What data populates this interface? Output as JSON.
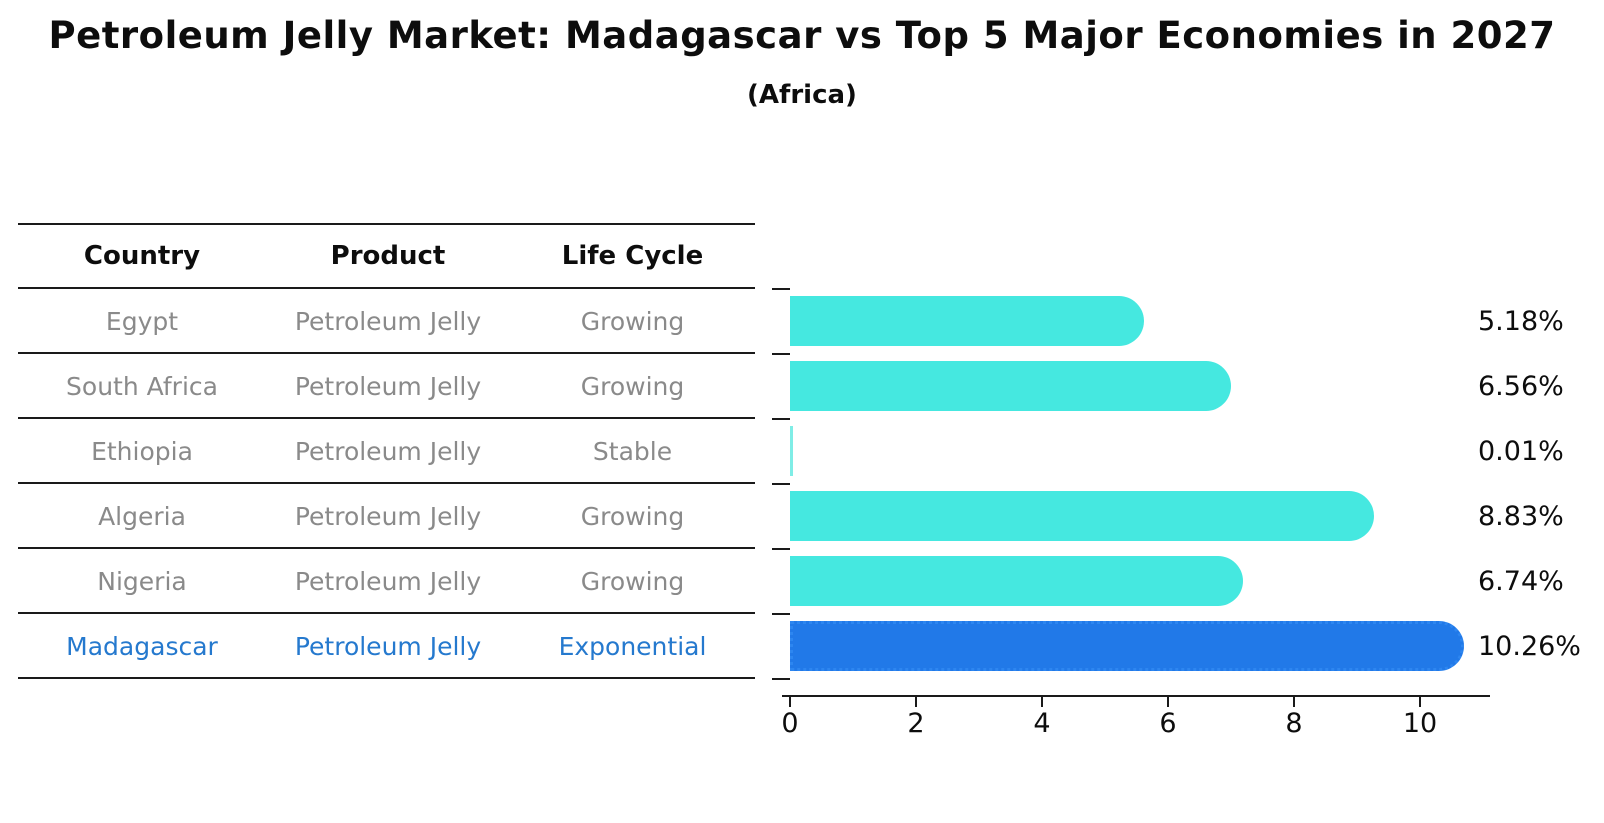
{
  "title": "Petroleum Jelly Market: Madagascar vs Top 5 Major Economies in 2027",
  "subtitle": "(Africa)",
  "table": {
    "headers": [
      "Country",
      "Product",
      "Life Cycle"
    ],
    "rows": [
      {
        "country": "Egypt",
        "product": "Petroleum Jelly",
        "life_cycle": "Growing",
        "highlight": false
      },
      {
        "country": "South Africa",
        "product": "Petroleum Jelly",
        "life_cycle": "Growing",
        "highlight": false
      },
      {
        "country": "Ethiopia",
        "product": "Petroleum Jelly",
        "life_cycle": "Stable",
        "highlight": false
      },
      {
        "country": "Algeria",
        "product": "Petroleum Jelly",
        "life_cycle": "Growing",
        "highlight": false
      },
      {
        "country": "Nigeria",
        "product": "Petroleum Jelly",
        "life_cycle": "Growing",
        "highlight": false
      },
      {
        "country": "Madagascar",
        "product": "Petroleum Jelly",
        "life_cycle": "Exponential",
        "highlight": true
      }
    ]
  },
  "chart_data": {
    "type": "bar",
    "orientation": "horizontal",
    "title": "Petroleum Jelly Market: Madagascar vs Top 5 Major Economies in 2027 (Africa)",
    "categories": [
      "Egypt",
      "South Africa",
      "Ethiopia",
      "Algeria",
      "Nigeria",
      "Madagascar"
    ],
    "values": [
      5.18,
      6.56,
      0.01,
      8.83,
      6.74,
      10.26
    ],
    "labels": [
      "5.18%",
      "6.56%",
      "0.01%",
      "8.83%",
      "6.74%",
      "10.26%"
    ],
    "highlight_index": 5,
    "xticks": [
      "0",
      "2",
      "4",
      "6",
      "8",
      "10"
    ],
    "xtick_values": [
      0,
      2,
      4,
      6,
      8,
      10
    ],
    "xlim": [
      0,
      11.2
    ],
    "grid": false,
    "legend": "none",
    "colors": {
      "bar_default": "#45e8e0",
      "bar_highlight": "#2179e8",
      "bar_highlight_border": "#2d86f0",
      "row_text": "#8a8a8a",
      "highlight_text": "#2579ce",
      "axis": "#1a1a1a"
    }
  }
}
